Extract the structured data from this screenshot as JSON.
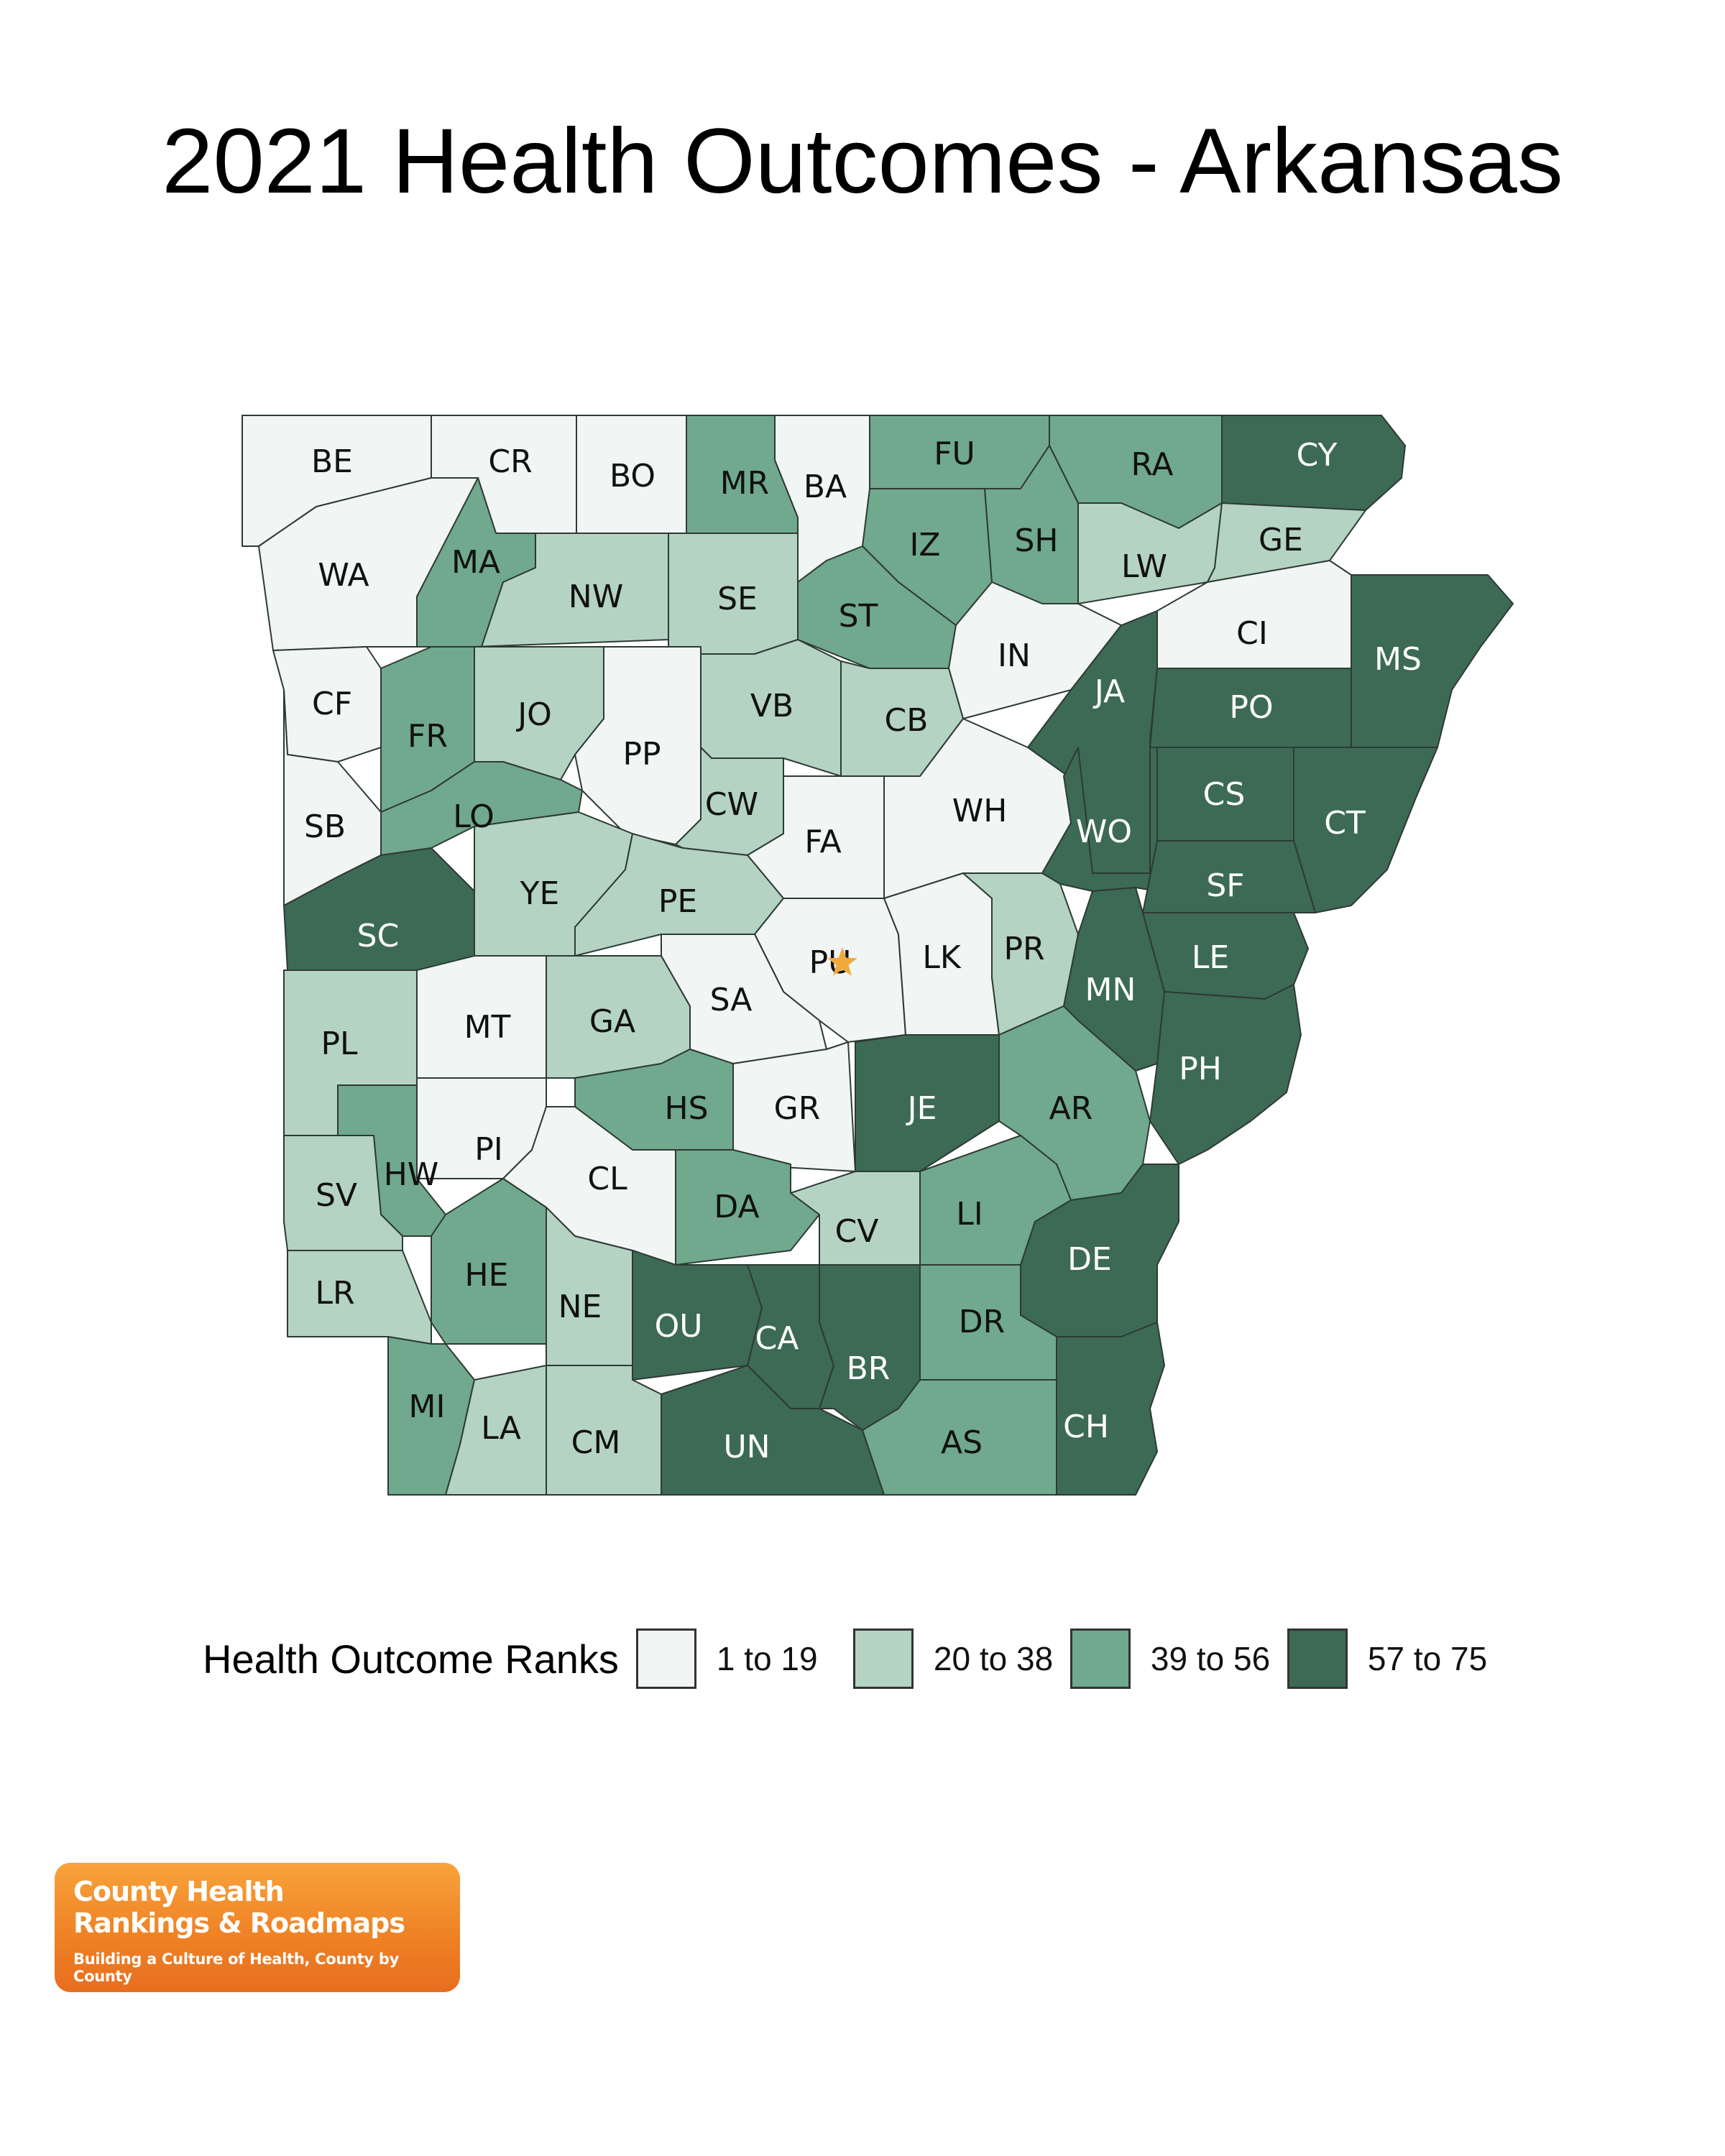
{
  "title": "2021 Health Outcomes - Arkansas",
  "legend": {
    "title": "Health Outcome Ranks",
    "items": [
      {
        "label": "1 to 19",
        "color": "#f1f5f4"
      },
      {
        "label": "20 to 38",
        "color": "#b4d3c3"
      },
      {
        "label": "39 to 56",
        "color": "#70a98d"
      },
      {
        "label": "57 to 75",
        "color": "#3c6a55"
      }
    ]
  },
  "capital_marker": {
    "county": "PU",
    "color": "#f2a93b"
  },
  "counties": [
    {
      "abbr": "BE",
      "rank_group": 1
    },
    {
      "abbr": "CR",
      "rank_group": 1
    },
    {
      "abbr": "BO",
      "rank_group": 1
    },
    {
      "abbr": "MR",
      "rank_group": 3
    },
    {
      "abbr": "BA",
      "rank_group": 1
    },
    {
      "abbr": "FU",
      "rank_group": 3
    },
    {
      "abbr": "RA",
      "rank_group": 3
    },
    {
      "abbr": "CY",
      "rank_group": 4
    },
    {
      "abbr": "WA",
      "rank_group": 1
    },
    {
      "abbr": "MA",
      "rank_group": 3
    },
    {
      "abbr": "NW",
      "rank_group": 2
    },
    {
      "abbr": "SE",
      "rank_group": 2
    },
    {
      "abbr": "IZ",
      "rank_group": 3
    },
    {
      "abbr": "SH",
      "rank_group": 3
    },
    {
      "abbr": "LW",
      "rank_group": 2
    },
    {
      "abbr": "GE",
      "rank_group": 2
    },
    {
      "abbr": "ST",
      "rank_group": 3
    },
    {
      "abbr": "IN",
      "rank_group": 1
    },
    {
      "abbr": "CI",
      "rank_group": 1
    },
    {
      "abbr": "MS",
      "rank_group": 4
    },
    {
      "abbr": "CF",
      "rank_group": 1
    },
    {
      "abbr": "FR",
      "rank_group": 3
    },
    {
      "abbr": "JO",
      "rank_group": 2
    },
    {
      "abbr": "PP",
      "rank_group": 1
    },
    {
      "abbr": "VB",
      "rank_group": 2
    },
    {
      "abbr": "CB",
      "rank_group": 2
    },
    {
      "abbr": "JA",
      "rank_group": 4
    },
    {
      "abbr": "PO",
      "rank_group": 4
    },
    {
      "abbr": "SB",
      "rank_group": 1
    },
    {
      "abbr": "LO",
      "rank_group": 3
    },
    {
      "abbr": "CW",
      "rank_group": 2
    },
    {
      "abbr": "FA",
      "rank_group": 1
    },
    {
      "abbr": "WH",
      "rank_group": 1
    },
    {
      "abbr": "WO",
      "rank_group": 4
    },
    {
      "abbr": "CS",
      "rank_group": 4
    },
    {
      "abbr": "CT",
      "rank_group": 4
    },
    {
      "abbr": "YE",
      "rank_group": 2
    },
    {
      "abbr": "PE",
      "rank_group": 2
    },
    {
      "abbr": "SF",
      "rank_group": 4
    },
    {
      "abbr": "SC",
      "rank_group": 4
    },
    {
      "abbr": "PU",
      "rank_group": 1
    },
    {
      "abbr": "LK",
      "rank_group": 1
    },
    {
      "abbr": "PR",
      "rank_group": 2
    },
    {
      "abbr": "LE",
      "rank_group": 4
    },
    {
      "abbr": "MN",
      "rank_group": 4
    },
    {
      "abbr": "PL",
      "rank_group": 2
    },
    {
      "abbr": "MT",
      "rank_group": 1
    },
    {
      "abbr": "GA",
      "rank_group": 2
    },
    {
      "abbr": "SA",
      "rank_group": 1
    },
    {
      "abbr": "PH",
      "rank_group": 4
    },
    {
      "abbr": "HS",
      "rank_group": 3
    },
    {
      "abbr": "GR",
      "rank_group": 1
    },
    {
      "abbr": "JE",
      "rank_group": 4
    },
    {
      "abbr": "AR",
      "rank_group": 3
    },
    {
      "abbr": "PI",
      "rank_group": 1
    },
    {
      "abbr": "HW",
      "rank_group": 3
    },
    {
      "abbr": "SV",
      "rank_group": 2
    },
    {
      "abbr": "CL",
      "rank_group": 1
    },
    {
      "abbr": "DA",
      "rank_group": 3
    },
    {
      "abbr": "CV",
      "rank_group": 2
    },
    {
      "abbr": "LI",
      "rank_group": 3
    },
    {
      "abbr": "DE",
      "rank_group": 4
    },
    {
      "abbr": "HE",
      "rank_group": 3
    },
    {
      "abbr": "LR",
      "rank_group": 2
    },
    {
      "abbr": "NE",
      "rank_group": 2
    },
    {
      "abbr": "OU",
      "rank_group": 4
    },
    {
      "abbr": "CA",
      "rank_group": 4
    },
    {
      "abbr": "DR",
      "rank_group": 3
    },
    {
      "abbr": "BR",
      "rank_group": 4
    },
    {
      "abbr": "MI",
      "rank_group": 3
    },
    {
      "abbr": "LA",
      "rank_group": 2
    },
    {
      "abbr": "CM",
      "rank_group": 2
    },
    {
      "abbr": "UN",
      "rank_group": 4
    },
    {
      "abbr": "AS",
      "rank_group": 3
    },
    {
      "abbr": "CH",
      "rank_group": 4
    }
  ],
  "logo": {
    "line1": "County Health",
    "line2": "Rankings & Roadmaps",
    "tagline": "Building a Culture of Health, County by County"
  }
}
